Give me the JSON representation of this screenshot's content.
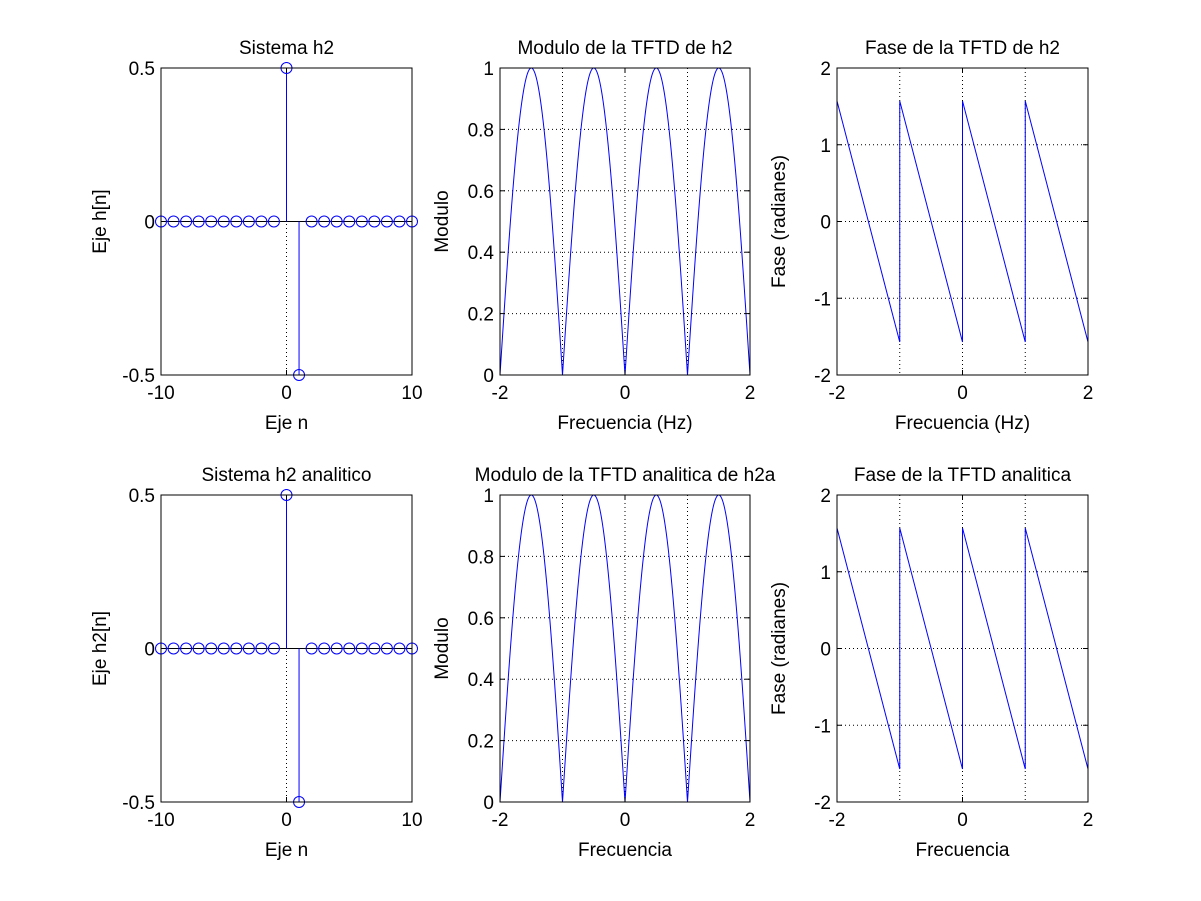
{
  "figure": {
    "background": "#ffffff",
    "line_color": "#0000ff",
    "grid_color": "#000000"
  },
  "chart_data": [
    {
      "id": "stem-h2",
      "type": "stem",
      "title": "Sistema h2",
      "xlabel": "Eje n",
      "ylabel": "Eje h[n]",
      "xlim": [
        -10,
        10
      ],
      "ylim": [
        -0.5,
        0.5
      ],
      "xticks": [
        -10,
        0,
        10
      ],
      "xtick_labels": [
        "-10",
        "0",
        "10"
      ],
      "yticks": [
        -0.5,
        0,
        0.5
      ],
      "ytick_labels": [
        "-0.5",
        "0",
        "0.5"
      ],
      "grid": false,
      "zero_line": true,
      "vertical_dotted_at": 0,
      "x": [
        -10,
        -9,
        -8,
        -7,
        -6,
        -5,
        -4,
        -3,
        -2,
        -1,
        0,
        1,
        2,
        3,
        4,
        5,
        6,
        7,
        8,
        9,
        10
      ],
      "values": [
        0,
        0,
        0,
        0,
        0,
        0,
        0,
        0,
        0,
        0,
        0.5,
        -0.5,
        0,
        0,
        0,
        0,
        0,
        0,
        0,
        0,
        0
      ]
    },
    {
      "id": "mag-h2",
      "type": "line",
      "curve": "abs_sin",
      "title": "Modulo de la TFTD de h2",
      "xlabel": "Frecuencia (Hz)",
      "ylabel": "Modulo",
      "xlim": [
        -2,
        2
      ],
      "ylim": [
        0,
        1
      ],
      "xticks": [
        -2,
        0,
        2
      ],
      "xtick_labels": [
        "-2",
        "0",
        "2"
      ],
      "yticks": [
        0,
        0.2,
        0.4,
        0.6,
        0.8,
        1
      ],
      "ytick_labels": [
        "0",
        "0.2",
        "0.4",
        "0.6",
        "0.8",
        "1"
      ],
      "grid": true,
      "grid_x": [
        -1,
        0,
        1
      ],
      "grid_y": [
        0.2,
        0.4,
        0.6,
        0.8
      ],
      "peaks": [
        [
          -1.5,
          1
        ],
        [
          -0.5,
          1
        ],
        [
          0.5,
          1
        ],
        [
          1.5,
          1
        ]
      ],
      "zeros": [
        -2,
        -1,
        0,
        1,
        2
      ]
    },
    {
      "id": "phase-h2",
      "type": "line",
      "curve": "sawtooth_phase",
      "title": "Fase de la TFTD de h2",
      "xlabel": "Frecuencia (Hz)",
      "ylabel": "Fase (radianes)",
      "xlim": [
        -2,
        2
      ],
      "ylim": [
        -2,
        2
      ],
      "xticks": [
        -2,
        0,
        2
      ],
      "xtick_labels": [
        "-2",
        "0",
        "2"
      ],
      "yticks": [
        -2,
        -1,
        0,
        1,
        2
      ],
      "ytick_labels": [
        "-2",
        "-1",
        "0",
        "1",
        "2"
      ],
      "grid": true,
      "grid_x": [
        -1,
        0,
        1
      ],
      "grid_y": [
        -1,
        0,
        1
      ],
      "segments": [
        [
          -2,
          1.5708,
          -1,
          -1.5708
        ],
        [
          -1,
          1.5708,
          0,
          -1.5708
        ],
        [
          0,
          1.5708,
          1,
          -1.5708
        ],
        [
          1,
          1.5708,
          2,
          -1.5708
        ]
      ]
    },
    {
      "id": "stem-h2a",
      "type": "stem",
      "title": "Sistema h2 analitico",
      "xlabel": "Eje n",
      "ylabel": "Eje h2[n]",
      "xlim": [
        -10,
        10
      ],
      "ylim": [
        -0.5,
        0.5
      ],
      "xticks": [
        -10,
        0,
        10
      ],
      "xtick_labels": [
        "-10",
        "0",
        "10"
      ],
      "yticks": [
        -0.5,
        0,
        0.5
      ],
      "ytick_labels": [
        "-0.5",
        "0",
        "0.5"
      ],
      "grid": false,
      "zero_line": true,
      "vertical_dotted_at": 0,
      "x": [
        -10,
        -9,
        -8,
        -7,
        -6,
        -5,
        -4,
        -3,
        -2,
        -1,
        0,
        1,
        2,
        3,
        4,
        5,
        6,
        7,
        8,
        9,
        10
      ],
      "values": [
        0,
        0,
        0,
        0,
        0,
        0,
        0,
        0,
        0,
        0,
        0.5,
        -0.5,
        0,
        0,
        0,
        0,
        0,
        0,
        0,
        0,
        0
      ]
    },
    {
      "id": "mag-h2a",
      "type": "line",
      "curve": "abs_sin",
      "title": "Modulo de la TFTD analitica de h2a",
      "xlabel": "Frecuencia",
      "ylabel": "Modulo",
      "xlim": [
        -2,
        2
      ],
      "ylim": [
        0,
        1
      ],
      "xticks": [
        -2,
        0,
        2
      ],
      "xtick_labels": [
        "-2",
        "0",
        "2"
      ],
      "yticks": [
        0,
        0.2,
        0.4,
        0.6,
        0.8,
        1
      ],
      "ytick_labels": [
        "0",
        "0.2",
        "0.4",
        "0.6",
        "0.8",
        "1"
      ],
      "grid": true,
      "grid_x": [
        -1,
        0,
        1
      ],
      "grid_y": [
        0.2,
        0.4,
        0.6,
        0.8
      ],
      "peaks": [
        [
          -1.5,
          1
        ],
        [
          -0.5,
          1
        ],
        [
          0.5,
          1
        ],
        [
          1.5,
          1
        ]
      ],
      "zeros": [
        -2,
        -1,
        0,
        1,
        2
      ]
    },
    {
      "id": "phase-h2a",
      "type": "line",
      "curve": "sawtooth_phase",
      "title": "Fase de la TFTD analitica",
      "xlabel": "Frecuencia",
      "ylabel": "Fase (radianes)",
      "xlim": [
        -2,
        2
      ],
      "ylim": [
        -2,
        2
      ],
      "xticks": [
        -2,
        0,
        2
      ],
      "xtick_labels": [
        "-2",
        "0",
        "2"
      ],
      "yticks": [
        -2,
        -1,
        0,
        1,
        2
      ],
      "ytick_labels": [
        "-2",
        "-1",
        "0",
        "1",
        "2"
      ],
      "grid": true,
      "grid_x": [
        -1,
        0,
        1
      ],
      "grid_y": [
        -1,
        0,
        1
      ],
      "segments": [
        [
          -2,
          1.5708,
          -1,
          -1.5708
        ],
        [
          -1,
          1.5708,
          0,
          -1.5708
        ],
        [
          0,
          1.5708,
          1,
          -1.5708
        ],
        [
          1,
          1.5708,
          2,
          -1.5708
        ]
      ]
    }
  ]
}
